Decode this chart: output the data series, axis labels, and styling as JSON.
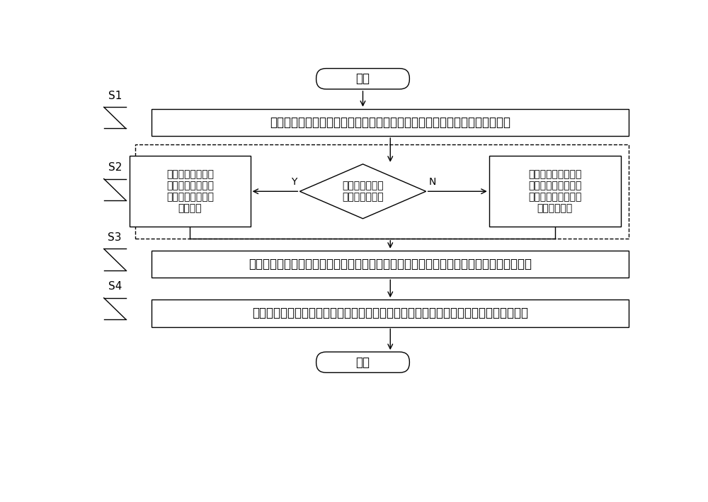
{
  "bg_color": "#ffffff",
  "line_color": "#000000",
  "box_fill": "#ffffff",
  "font_size_main": 12,
  "font_size_label": 10,
  "font_size_step": 11,
  "title_start": "开始",
  "title_end": "结束",
  "step1_text": "构建滑块模型，并根据滑块模型得到沿滑动方向地震动和垂直滑动方向地震动",
  "step2_diamond": "判断地下水位是\n否高于软弱层位",
  "step2_left_text": "利用剪切试验检测\n岩土体内聚力，并\n计算得到滑块摩擦\n系数函数",
  "step2_right_text": "利用无侧限抗压强度\n试验检测岩土体内聚\n力，并计算得到滑块\n摩擦系数函数",
  "step3_text": "根据沿滑动方向地震动、垂直滑动方向地震动、滑块摩擦系数函数计算得到滑块的安全系数",
  "step4_text": "根据所述滑块的安全系数计算得到地震边坡永久位移值，完成对地震边坡永久位移的计算",
  "label_Y": "Y",
  "label_N": "N",
  "label_S1": "S1",
  "label_S2": "S2",
  "label_S3": "S3",
  "label_S4": "S4"
}
